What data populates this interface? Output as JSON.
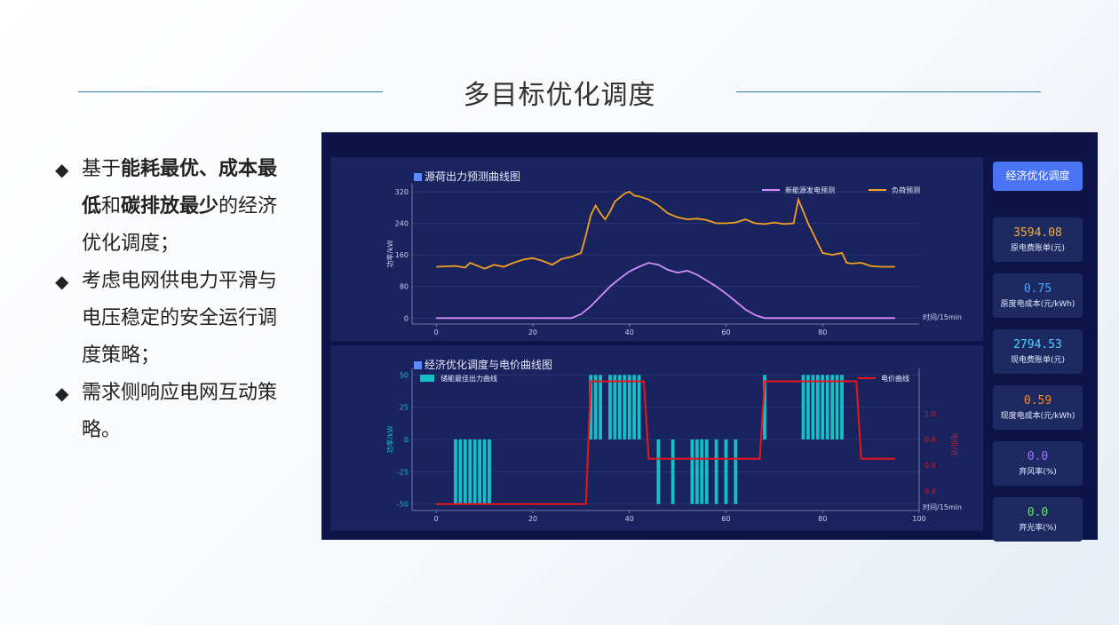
{
  "slide": {
    "title": "多目标优化调度",
    "bullets": [
      [
        {
          "t": "基于",
          "b": false
        },
        {
          "t": "能耗最优、成本最低",
          "b": true
        },
        {
          "t": "和",
          "b": false
        },
        {
          "t": "碳排放最少",
          "b": true
        },
        {
          "t": "的经济优化调度；",
          "b": false
        }
      ],
      [
        {
          "t": "考虑电网供电力平滑与电压稳定的安全运行调度策略；",
          "b": false
        }
      ],
      [
        {
          "t": "需求侧响应电网互动策略。",
          "b": false
        }
      ]
    ]
  },
  "dashboard": {
    "button_label": "经济优化调度",
    "cards": [
      {
        "value": "3594.08",
        "label": "原电费账单(元)",
        "color": "#f0b040"
      },
      {
        "value": "0.75",
        "label": "原度电成本(元/kWh)",
        "color": "#4aa3ff"
      },
      {
        "value": "2794.53",
        "label": "现电费账单(元)",
        "color": "#4fd0ff"
      },
      {
        "value": "0.59",
        "label": "现度电成本(元/kWh)",
        "color": "#f08a30"
      },
      {
        "value": "0.0",
        "label": "弃风率(%)",
        "color": "#9a7cff"
      },
      {
        "value": "0.0",
        "label": "弃光率(%)",
        "color": "#6ee07a"
      }
    ],
    "colors": {
      "solar": "#d58cff",
      "load": "#f5a020",
      "storage": "#14bfc8",
      "price": "#e8141e"
    }
  },
  "chart_data": [
    {
      "type": "line",
      "title": "源荷出力预测曲线图",
      "xlabel": "时间/15min",
      "ylabel": "功率/kW",
      "xlim": [
        -5,
        100
      ],
      "ylim": [
        -15,
        340
      ],
      "xticks": [
        0,
        20,
        40,
        60,
        80
      ],
      "yticks": [
        0,
        80,
        160,
        240,
        320
      ],
      "legend_position": "top-right",
      "series": [
        {
          "name": "新能源发电预测",
          "x": [
            0,
            28,
            30,
            32,
            34,
            36,
            38,
            40,
            42,
            44,
            46,
            48,
            50,
            52,
            54,
            56,
            58,
            60,
            62,
            64,
            66,
            68,
            70,
            95
          ],
          "y": [
            0,
            0,
            10,
            30,
            55,
            80,
            100,
            118,
            130,
            140,
            135,
            122,
            115,
            120,
            110,
            95,
            80,
            62,
            42,
            22,
            8,
            0,
            0,
            0
          ]
        },
        {
          "name": "负荷预测",
          "x": [
            0,
            4,
            6,
            7,
            8,
            10,
            11,
            12,
            14,
            16,
            18,
            20,
            22,
            24,
            26,
            28,
            29,
            30,
            31,
            32,
            33,
            34,
            35,
            36,
            37,
            38,
            39,
            40,
            41,
            42,
            44,
            46,
            48,
            50,
            52,
            54,
            56,
            58,
            60,
            62,
            64,
            66,
            68,
            70,
            72,
            74,
            75,
            76,
            77,
            78,
            79,
            80,
            82,
            84,
            85,
            86,
            88,
            90,
            92,
            95
          ],
          "y": [
            130,
            132,
            128,
            140,
            135,
            125,
            130,
            135,
            130,
            140,
            148,
            152,
            145,
            135,
            150,
            155,
            160,
            165,
            210,
            260,
            285,
            265,
            250,
            270,
            295,
            305,
            315,
            320,
            310,
            308,
            300,
            285,
            265,
            255,
            250,
            252,
            248,
            240,
            240,
            242,
            250,
            240,
            238,
            242,
            238,
            240,
            300,
            270,
            240,
            215,
            190,
            165,
            160,
            165,
            140,
            138,
            140,
            132,
            130,
            130
          ]
        }
      ]
    },
    {
      "type": "bar",
      "title": "经济优化调度与电价曲线图",
      "xlabel": "时间/15min",
      "ylabel": "功率/kW",
      "y2label": "电价/元",
      "xlim": [
        -5,
        100
      ],
      "ylim": [
        -55,
        55
      ],
      "y2lim": [
        0.25,
        1.35
      ],
      "xticks": [
        0,
        20,
        40,
        60,
        80,
        100
      ],
      "yticks": [
        -50,
        -25,
        0,
        25,
        50
      ],
      "y2ticks": [
        0.4,
        0.6,
        0.8,
        1.0
      ],
      "legend_position": "top-left",
      "series": [
        {
          "name": "储能最佳出力曲线",
          "x": [
            4,
            5,
            6,
            7,
            8,
            9,
            10,
            11,
            32,
            33,
            34,
            36,
            37,
            38,
            39,
            40,
            41,
            42,
            46,
            49,
            53,
            54,
            55,
            56,
            58,
            60,
            62,
            68,
            76,
            77,
            78,
            79,
            80,
            81,
            82,
            83,
            84
          ],
          "y": [
            -50,
            -50,
            -50,
            -50,
            -50,
            -50,
            -50,
            -50,
            50,
            50,
            50,
            50,
            50,
            50,
            50,
            50,
            50,
            50,
            -50,
            -50,
            -50,
            -50,
            -50,
            -50,
            -50,
            -50,
            -50,
            50,
            50,
            50,
            50,
            50,
            50,
            50,
            50,
            50,
            50
          ]
        },
        {
          "name": "电价曲线",
          "x": [
            0,
            31,
            32,
            43,
            44,
            67,
            68,
            87,
            88,
            95
          ],
          "y": [
            0.3,
            0.3,
            1.25,
            1.25,
            0.65,
            0.65,
            1.25,
            1.25,
            0.65,
            0.65
          ]
        }
      ]
    }
  ]
}
